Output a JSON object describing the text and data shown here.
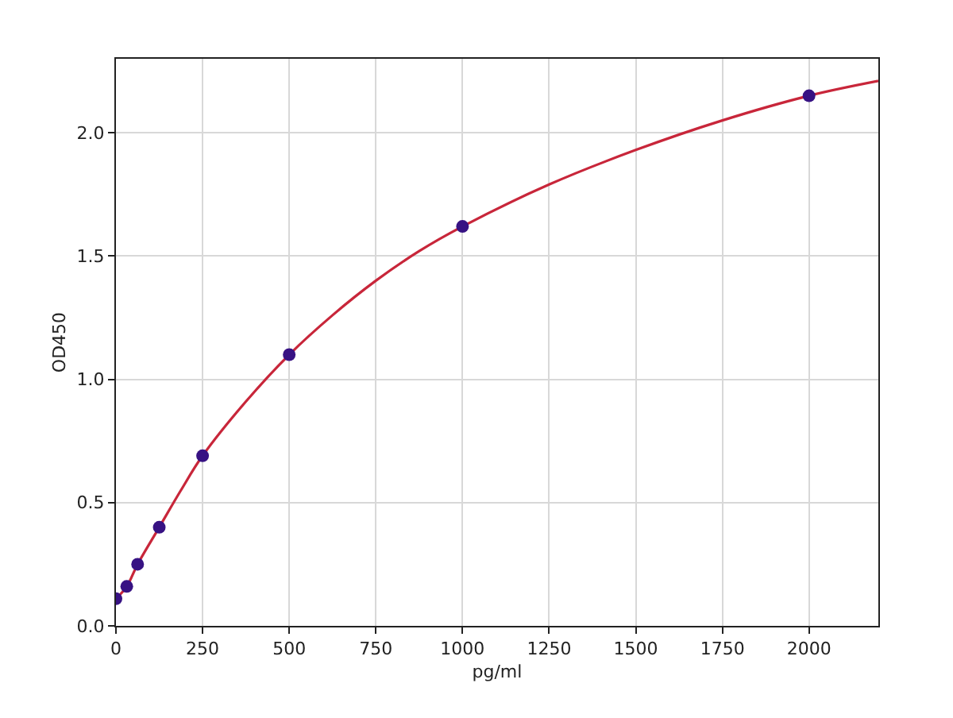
{
  "chart_data": {
    "type": "scatter",
    "xlabel": "pg/ml",
    "ylabel": "OD450",
    "series": [
      {
        "type": "line",
        "color": "#c8263a",
        "marker": "none",
        "x": [
          0,
          31.25,
          62.5,
          125,
          187.5,
          250,
          375,
          500,
          625,
          750,
          875,
          1000,
          1250,
          1500,
          1750,
          2000,
          2200
        ],
        "values": [
          0.11,
          0.16,
          0.25,
          0.4,
          0.55,
          0.69,
          0.91,
          1.1,
          1.26,
          1.4,
          1.52,
          1.62,
          1.79,
          1.93,
          2.05,
          2.15,
          2.21
        ]
      },
      {
        "color": "#371283",
        "x": [
          0,
          31.25,
          62.5,
          125,
          250,
          500,
          1000,
          2000
        ],
        "values": [
          0.11,
          0.16,
          0.25,
          0.4,
          0.69,
          1.1,
          1.62,
          2.15
        ]
      }
    ],
    "marker": "circle",
    "grid": true,
    "xlim": [
      0,
      2200
    ],
    "xticks": [
      0,
      250,
      500,
      750,
      1000,
      1250,
      1500,
      1750,
      2000
    ],
    "ylim": [
      0,
      2.3
    ],
    "yticks": [
      {
        "value": 0,
        "label": "0.0"
      },
      {
        "value": 0.5,
        "label": "0.5"
      },
      {
        "value": 1,
        "label": "1.0"
      },
      {
        "value": 1.5,
        "label": "1.5"
      },
      {
        "value": 2,
        "label": "2.0"
      }
    ]
  }
}
